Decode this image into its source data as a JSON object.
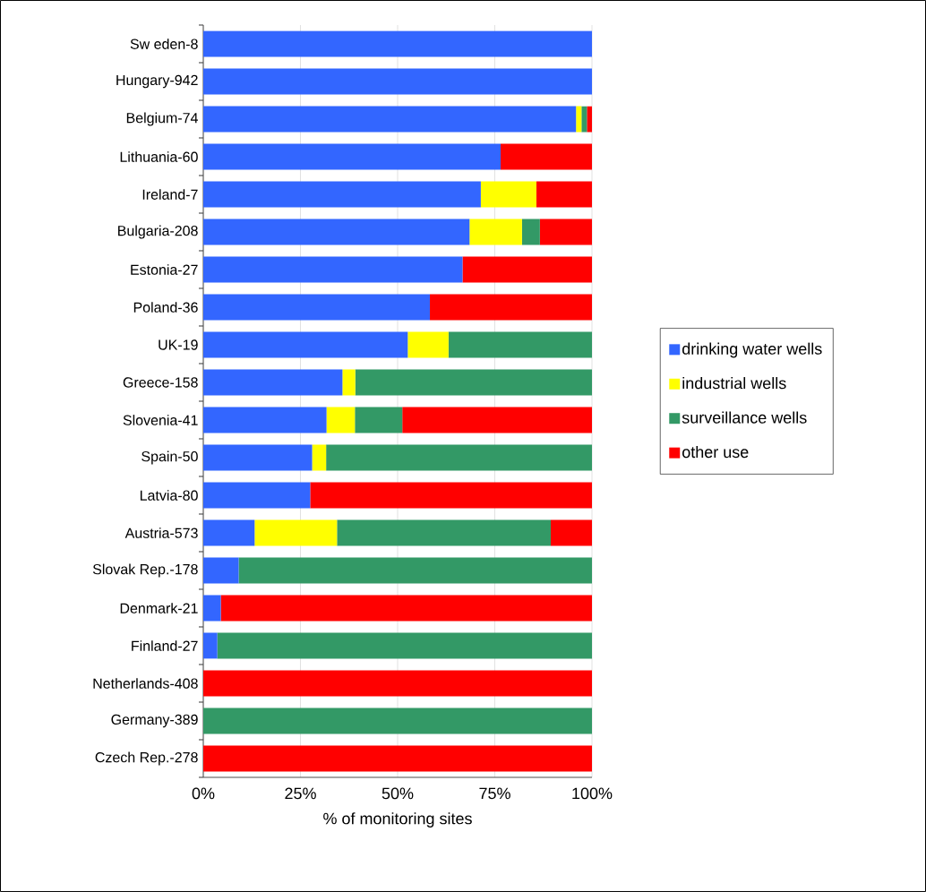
{
  "chart_data": {
    "type": "bar",
    "orientation": "horizontal",
    "stacked": true,
    "xlabel": "% of monitoring sites",
    "categories": [
      "Sw eden-8",
      "Hungary-942",
      "Belgium-74",
      "Lithuania-60",
      "Ireland-7",
      "Bulgaria-208",
      "Estonia-27",
      "Poland-36",
      "UK-19",
      "Greece-158",
      "Slovenia-41",
      "Spain-50",
      "Latvia-80",
      "Austria-573",
      "Slovak Rep.-178",
      "Denmark-21",
      "Finland-27",
      "Netherlands-408",
      "Germany-389",
      "Czech Rep.-278"
    ],
    "series": [
      {
        "name": "drinking water wells",
        "color": "#3366ff",
        "values": [
          100,
          100,
          95.9,
          76.5,
          71.4,
          68.5,
          66.7,
          58.3,
          52.6,
          35.8,
          31.7,
          28,
          27.5,
          13.2,
          9.1,
          4.5,
          3.6,
          0,
          0,
          0
        ]
      },
      {
        "name": "industrial wells",
        "color": "#ffff00",
        "values": [
          0,
          0,
          1.4,
          0,
          14.3,
          13.5,
          0,
          0,
          10.5,
          3.3,
          7.3,
          3.6,
          0,
          21.2,
          0,
          0,
          0,
          0,
          0,
          0
        ]
      },
      {
        "name": "surveillance wells",
        "color": "#339966",
        "values": [
          0,
          0,
          1.4,
          0,
          0,
          4.6,
          0,
          0,
          36.9,
          60.9,
          12.2,
          68.4,
          0,
          55.0,
          90.9,
          0,
          96.4,
          0,
          100,
          0
        ]
      },
      {
        "name": "other use",
        "color": "#ff0000",
        "values": [
          0,
          0,
          1.3,
          23.5,
          14.3,
          13.4,
          33.3,
          41.7,
          0,
          0,
          48.8,
          0,
          72.5,
          10.6,
          0,
          95.5,
          0,
          100,
          0,
          100
        ]
      }
    ],
    "xlim": [
      0,
      100
    ],
    "xticks": [
      {
        "value": 0,
        "label": "0%"
      },
      {
        "value": 25,
        "label": "25%"
      },
      {
        "value": 50,
        "label": "50%"
      },
      {
        "value": 75,
        "label": "75%"
      },
      {
        "value": 100,
        "label": "100%"
      }
    ],
    "grid": "x",
    "legend": "right"
  }
}
